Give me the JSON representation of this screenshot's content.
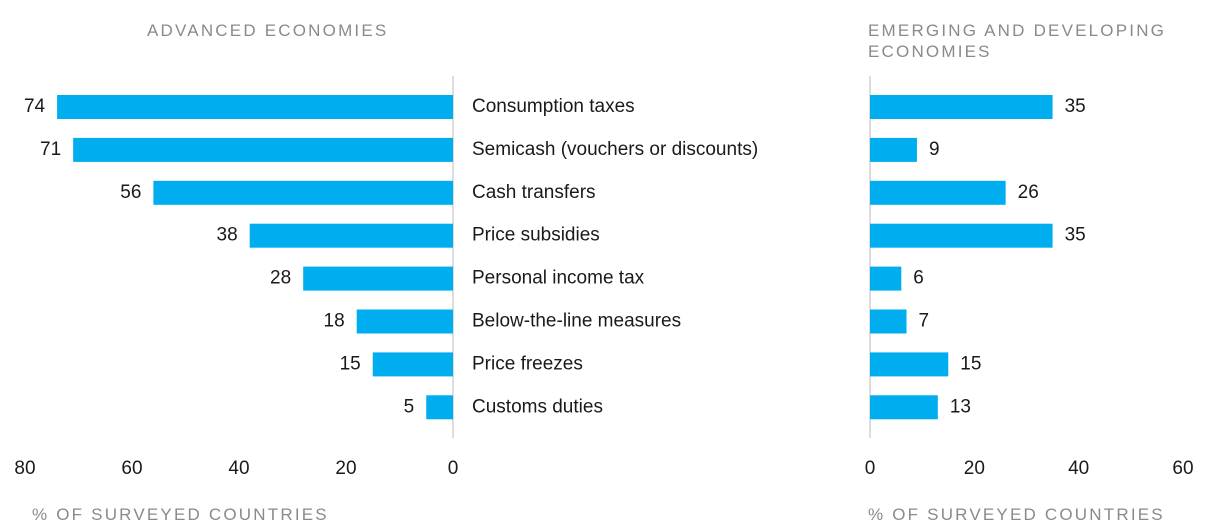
{
  "chart_data": [
    {
      "type": "bar",
      "title": "ADVANCED ECONOMIES",
      "xlabel": "% OF SURVEYED COUNTRIES",
      "categories": [
        "Consumption taxes",
        "Semicash (vouchers or discounts)",
        "Cash transfers",
        "Price subsidies",
        "Personal income tax",
        "Below-the-line measures",
        "Price freezes",
        "Customs duties"
      ],
      "values": [
        74,
        71,
        56,
        38,
        28,
        18,
        15,
        5
      ],
      "color": "#00aeef",
      "xlim": [
        80,
        0
      ],
      "xticks": [
        80,
        60,
        40,
        20,
        0
      ]
    },
    {
      "type": "bar",
      "title": "EMERGING AND DEVELOPING ECONOMIES",
      "xlabel": "% OF SURVEYED COUNTRIES",
      "values": [
        35,
        9,
        26,
        35,
        6,
        7,
        15,
        13
      ],
      "color": "#00aeef",
      "xlim": [
        0,
        60
      ],
      "xticks": [
        0,
        20,
        40,
        60
      ]
    }
  ]
}
